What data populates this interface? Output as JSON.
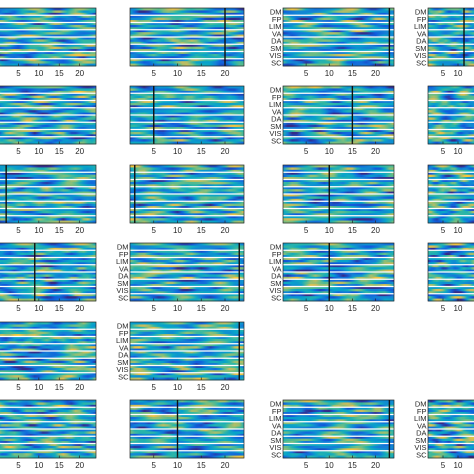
{
  "chart_data": {
    "type": "heatmap",
    "layout": {
      "columns": 4,
      "rows": 6
    },
    "network_labels": [
      "DM",
      "FP",
      "LIM",
      "VA",
      "DA",
      "SM",
      "VIS",
      "SC"
    ],
    "x_tick_labels": [
      "5",
      "10",
      "15",
      "20"
    ],
    "x_tick_values": [
      5,
      10,
      15,
      20
    ],
    "xlim": [
      0,
      24
    ],
    "colormap": [
      "#352a87",
      "#0f5cdd",
      "#1481d6",
      "#06a4ca",
      "#2eb7a4",
      "#87bf77",
      "#d1bb59",
      "#fec832",
      "#f9fb0e"
    ],
    "panels": [
      {
        "id": "r1c1",
        "y_labels_shown": false,
        "x_ticks_shown": true,
        "vline_x": null
      },
      {
        "id": "r1c2",
        "y_labels_shown": false,
        "x_ticks_shown": true,
        "vline_x": 20
      },
      {
        "id": "r1c3",
        "y_labels_shown": true,
        "x_ticks_shown": true,
        "vline_x": 23
      },
      {
        "id": "r1c4",
        "y_labels_shown": true,
        "x_ticks_shown": true,
        "vline_x": 12
      },
      {
        "id": "r2c1",
        "y_labels_shown": false,
        "x_ticks_shown": true,
        "vline_x": null
      },
      {
        "id": "r2c2",
        "y_labels_shown": false,
        "x_ticks_shown": true,
        "vline_x": 5
      },
      {
        "id": "r2c3",
        "y_labels_shown": true,
        "x_ticks_shown": true,
        "vline_x": 15
      },
      {
        "id": "r2c4",
        "y_labels_shown": false,
        "x_ticks_shown": true,
        "vline_x": null
      },
      {
        "id": "r3c1",
        "y_labels_shown": false,
        "x_ticks_shown": true,
        "vline_x": 2
      },
      {
        "id": "r3c2",
        "y_labels_shown": false,
        "x_ticks_shown": true,
        "vline_x": 1
      },
      {
        "id": "r3c3",
        "y_labels_shown": false,
        "x_ticks_shown": true,
        "vline_x": 10
      },
      {
        "id": "r3c4",
        "y_labels_shown": false,
        "x_ticks_shown": true,
        "vline_x": null
      },
      {
        "id": "r4c1",
        "y_labels_shown": false,
        "x_ticks_shown": true,
        "vline_x": 9
      },
      {
        "id": "r4c2",
        "y_labels_shown": true,
        "x_ticks_shown": true,
        "vline_x": 23
      },
      {
        "id": "r4c3",
        "y_labels_shown": true,
        "x_ticks_shown": true,
        "vline_x": 10
      },
      {
        "id": "r4c4",
        "y_labels_shown": false,
        "x_ticks_shown": true,
        "vline_x": null
      },
      {
        "id": "r5c1",
        "y_labels_shown": false,
        "x_ticks_shown": true,
        "vline_x": null
      },
      {
        "id": "r5c2",
        "y_labels_shown": true,
        "x_ticks_shown": true,
        "vline_x": 23
      },
      {
        "id": "r6c1",
        "y_labels_shown": false,
        "x_ticks_shown": true,
        "vline_x": null
      },
      {
        "id": "r6c2",
        "y_labels_shown": false,
        "x_ticks_shown": true,
        "vline_x": 10
      },
      {
        "id": "r6c3",
        "y_labels_shown": true,
        "x_ticks_shown": true,
        "vline_x": 23
      },
      {
        "id": "r6c4",
        "y_labels_shown": true,
        "x_ticks_shown": true,
        "vline_x": null
      }
    ]
  }
}
